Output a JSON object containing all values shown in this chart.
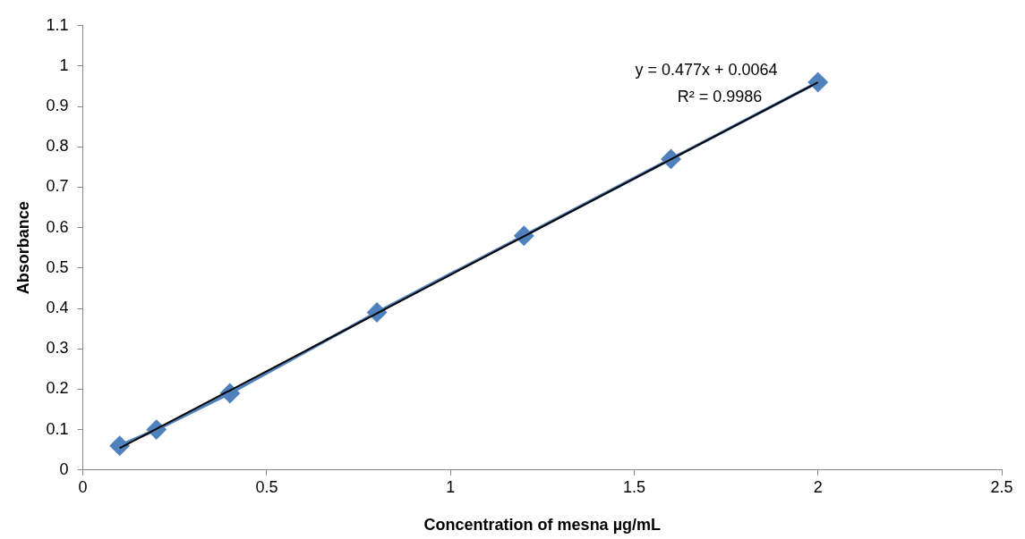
{
  "chart_data": {
    "type": "line",
    "xlabel": "Concentration of mesna µg/mL",
    "ylabel": "Absorbance",
    "annotations": [
      "y = 0.477x + 0.0064",
      "R² = 0.9986"
    ],
    "xlim": [
      0,
      2.5
    ],
    "xticks": [
      0,
      0.5,
      1,
      1.5,
      2,
      2.5
    ],
    "ylim": [
      0,
      1.1
    ],
    "yticks": [
      0,
      0.1,
      0.2,
      0.3,
      0.4,
      0.5,
      0.6,
      0.7,
      0.8,
      0.9,
      1,
      1.1
    ],
    "grid": false,
    "series": [
      {
        "color": "#4f81bd",
        "marker": "diamond",
        "x": [
          0.1,
          0.2,
          0.4,
          0.8,
          1.2,
          1.6,
          2.0
        ],
        "values": [
          0.06,
          0.1,
          0.19,
          0.39,
          0.58,
          0.77,
          0.96
        ]
      },
      {
        "color": "#000000",
        "marker": "none",
        "x": [
          0.1,
          2.0
        ],
        "values": [
          0.054,
          0.96
        ]
      }
    ]
  }
}
